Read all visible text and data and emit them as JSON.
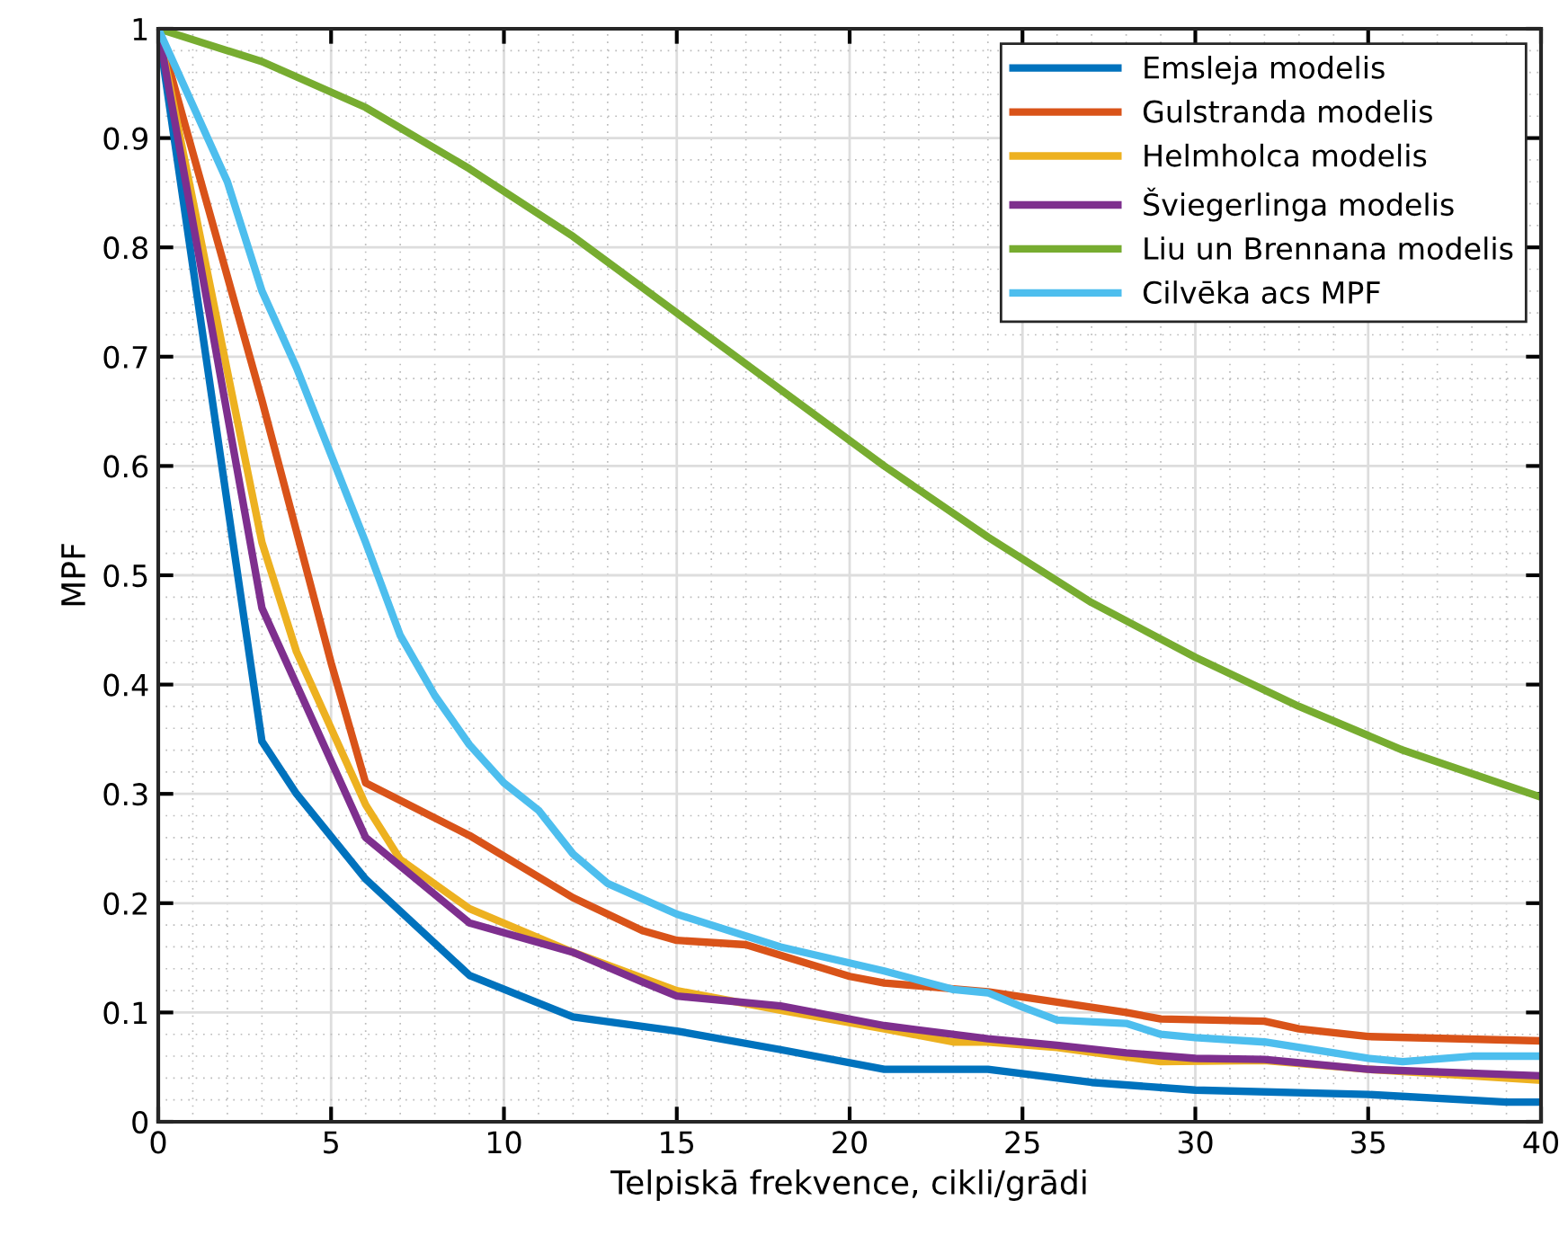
{
  "chart_data": {
    "type": "line",
    "xlabel": "Telpiskā frekvence, cikli/grādi",
    "ylabel": "MPF",
    "xlim": [
      0,
      40
    ],
    "xticks": [
      0,
      5,
      10,
      15,
      20,
      25,
      30,
      35,
      40
    ],
    "ylim": [
      0,
      1
    ],
    "yticks": [
      0,
      0.1,
      0.2,
      0.3,
      0.4,
      0.5,
      0.6,
      0.7,
      0.8,
      0.9,
      1
    ],
    "grid": true,
    "legend": "top right",
    "line_style": "solid",
    "marker": "none",
    "series": [
      {
        "name": "Emsleja modelis",
        "color": "#0072bd",
        "x": [
          0,
          3,
          4,
          6,
          9,
          12,
          15,
          18,
          21,
          24,
          27,
          30,
          35,
          39,
          40
        ],
        "values": [
          1,
          0.348,
          0.3,
          0.222,
          0.134,
          0.096,
          0.083,
          0.066,
          0.048,
          0.048,
          0.036,
          0.029,
          0.025,
          0.018,
          0.018
        ]
      },
      {
        "name": "Gulstranda modelis",
        "color": "#d95319",
        "x": [
          0,
          3,
          5,
          6,
          9,
          12,
          14,
          15,
          17,
          20,
          21,
          24,
          28,
          29,
          32,
          33,
          35,
          40
        ],
        "values": [
          1,
          0.66,
          0.42,
          0.31,
          0.262,
          0.205,
          0.175,
          0.166,
          0.162,
          0.133,
          0.127,
          0.119,
          0.1,
          0.094,
          0.092,
          0.085,
          0.078,
          0.074
        ]
      },
      {
        "name": "Helmholca modelis",
        "color": "#edb120",
        "x": [
          0,
          3,
          4,
          6,
          7,
          9,
          12,
          15,
          18,
          21,
          23,
          24,
          26,
          29,
          32,
          35,
          40
        ],
        "values": [
          1,
          0.53,
          0.43,
          0.29,
          0.24,
          0.195,
          0.155,
          0.12,
          0.102,
          0.085,
          0.073,
          0.073,
          0.068,
          0.055,
          0.056,
          0.048,
          0.038
        ]
      },
      {
        "name": "Šviegerlinga modelis",
        "color": "#7e2f8e",
        "x": [
          0,
          3,
          6,
          9,
          12,
          14,
          15,
          18,
          21,
          24,
          26,
          28,
          30,
          32,
          35,
          40
        ],
        "values": [
          1,
          0.47,
          0.26,
          0.182,
          0.155,
          0.128,
          0.115,
          0.106,
          0.088,
          0.076,
          0.07,
          0.063,
          0.058,
          0.057,
          0.048,
          0.042
        ]
      },
      {
        "name": "Liu un Brennana modelis",
        "color": "#77ac30",
        "x": [
          0,
          3,
          6,
          9,
          12,
          15,
          18,
          21,
          24,
          27,
          30,
          33,
          36,
          40
        ],
        "values": [
          1,
          0.97,
          0.928,
          0.872,
          0.81,
          0.74,
          0.67,
          0.6,
          0.535,
          0.475,
          0.425,
          0.38,
          0.34,
          0.297
        ]
      },
      {
        "name": "Cilvēka acs MPF",
        "color": "#4dbeee",
        "x": [
          0,
          2,
          3,
          4,
          6,
          7,
          8,
          9,
          10,
          11,
          12,
          13,
          15,
          18,
          21,
          23,
          24,
          25,
          26,
          28,
          29,
          30,
          32,
          35,
          36,
          38,
          40
        ],
        "values": [
          1,
          0.86,
          0.76,
          0.69,
          0.53,
          0.445,
          0.39,
          0.345,
          0.31,
          0.285,
          0.245,
          0.218,
          0.19,
          0.16,
          0.138,
          0.121,
          0.118,
          0.105,
          0.093,
          0.09,
          0.08,
          0.077,
          0.073,
          0.058,
          0.055,
          0.06,
          0.06
        ]
      }
    ]
  }
}
